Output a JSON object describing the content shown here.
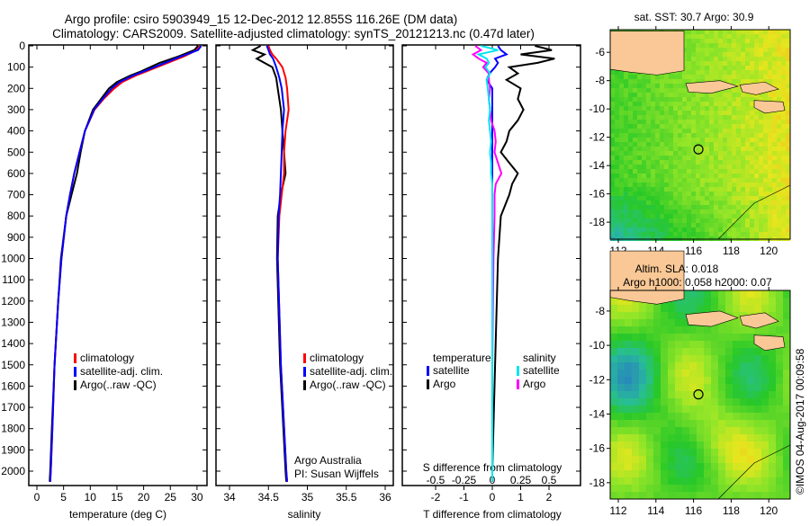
{
  "title": {
    "line1": "Argo profile: csiro 5903949_15 12-Dec-2012 12.855S 116.26E (DM data)",
    "line2": "Climatology: CARS2009. Satellite-adjusted climatology: synTS_20121213.nc (0.47d later)"
  },
  "copyright": "©IMOS 04-Aug-2017 00:09:58",
  "colors": {
    "climatology": "#ff0000",
    "satellite": "#0000ff",
    "argo": "#000000",
    "sal_satellite": "#00e5ee",
    "sal_argo": "#ff00ff"
  },
  "chart_data": [
    {
      "type": "line",
      "name": "temperature",
      "xlabel": "temperature (deg C)",
      "ylabel": "depth",
      "xlim": [
        -1,
        31.5
      ],
      "ylim": [
        2070,
        0
      ],
      "xticks": [
        "0",
        "5",
        "10",
        "15",
        "20",
        "25",
        "30"
      ],
      "yticks": [
        "0",
        "100",
        "200",
        "300",
        "400",
        "500",
        "600",
        "700",
        "800",
        "900",
        "1000",
        "1100",
        "1200",
        "1300",
        "1400",
        "1500",
        "1600",
        "1700",
        "1800",
        "1900",
        "2000"
      ],
      "legend": [
        "climatology",
        "satellite-adj. clim.",
        "Argo(..raw -QC)"
      ],
      "depth": [
        0,
        20,
        50,
        80,
        120,
        140,
        170,
        200,
        250,
        300,
        400,
        500,
        600,
        700,
        800,
        1000,
        1200,
        1500,
        1800,
        2000,
        2050
      ],
      "series": [
        {
          "name": "climatology",
          "values": [
            30.5,
            30,
            27.5,
            24.5,
            20.5,
            18.5,
            16,
            14.5,
            12.5,
            10.8,
            9,
            8,
            7,
            6.2,
            5.5,
            4.6,
            4,
            3.3,
            2.9,
            2.6,
            2.5
          ]
        },
        {
          "name": "satellite-adj. clim.",
          "values": [
            30.8,
            30.2,
            27,
            24,
            20,
            18,
            15.5,
            14,
            12.3,
            10.7,
            9,
            8,
            7,
            6.2,
            5.5,
            4.6,
            4,
            3.3,
            2.9,
            2.6,
            2.5
          ]
        },
        {
          "name": "Argo",
          "values": [
            30.2,
            29.5,
            26.5,
            23,
            19.5,
            17.5,
            15,
            13.5,
            12,
            10.5,
            9,
            8.2,
            7.5,
            6.5,
            5.5,
            4.5,
            4,
            3.3,
            2.8,
            2.5,
            2.4
          ]
        }
      ]
    },
    {
      "type": "line",
      "name": "salinity",
      "xlabel": "salinity",
      "xlim": [
        33.82,
        36.1
      ],
      "ylim": [
        2070,
        0
      ],
      "xticks": [
        "34",
        "34.5",
        "35",
        "35.5",
        "36"
      ],
      "legend": [
        "climatology",
        "satellite-adj. clim.",
        "Argo(..raw -QC)"
      ],
      "annotation": [
        "Argo Australia",
        "PI: Susan Wijffels"
      ],
      "depth": [
        0,
        20,
        40,
        60,
        100,
        150,
        200,
        300,
        400,
        500,
        600,
        700,
        800,
        1000,
        1500,
        2000,
        2050
      ],
      "series": [
        {
          "name": "climatology",
          "values": [
            34.5,
            34.52,
            34.55,
            34.6,
            34.68,
            34.72,
            34.74,
            34.76,
            34.72,
            34.7,
            34.7,
            34.67,
            34.64,
            34.62,
            34.66,
            34.73,
            34.74
          ]
        },
        {
          "name": "satellite-adj. clim.",
          "values": [
            34.48,
            34.5,
            34.52,
            34.56,
            34.6,
            34.64,
            34.67,
            34.7,
            34.68,
            34.67,
            34.66,
            34.65,
            34.63,
            34.62,
            34.66,
            34.73,
            34.74
          ]
        },
        {
          "name": "Argo",
          "values": [
            34.4,
            34.3,
            34.45,
            34.35,
            34.55,
            34.6,
            34.62,
            34.66,
            34.68,
            34.7,
            34.72,
            34.66,
            34.62,
            34.61,
            34.65,
            34.72,
            34.73
          ]
        }
      ]
    },
    {
      "type": "line",
      "name": "difference",
      "xlabel": "T difference from climatology",
      "x2label": "S difference from climatology",
      "xlim": [
        -3,
        3
      ],
      "ylim": [
        2070,
        0
      ],
      "xticks": [
        "-2",
        "-1",
        "0",
        "1",
        "2"
      ],
      "x2ticks": [
        "-0.5",
        "-0.25",
        "0",
        "0.25",
        "0.5"
      ],
      "legend": {
        "temperature_header": "temperature",
        "salinity_header": "salinity",
        "t_sat": "satellite",
        "t_argo": "Argo",
        "s_sat": "satellite",
        "s_argo": "Argo"
      },
      "depth": [
        0,
        20,
        40,
        60,
        80,
        100,
        130,
        160,
        200,
        250,
        300,
        350,
        400,
        450,
        500,
        550,
        600,
        650,
        700,
        800,
        1000,
        1500,
        2000,
        2050
      ],
      "series": [
        {
          "name": "T satellite",
          "values": [
            0.2,
            0.3,
            0.5,
            0.1,
            0.2,
            0.1,
            -0.1,
            -0.2,
            0,
            0,
            0,
            0,
            0,
            0,
            0,
            0,
            0,
            0,
            0,
            0,
            0,
            0,
            0,
            0
          ]
        },
        {
          "name": "T Argo",
          "values": [
            1.5,
            2.1,
            1,
            2.2,
            1.6,
            0.6,
            0.9,
            0.5,
            1.0,
            0.9,
            1.1,
            0.9,
            0.6,
            0.5,
            0.3,
            0.6,
            0.9,
            0.7,
            0.6,
            0.3,
            0.2,
            0.1,
            0,
            0
          ]
        },
        {
          "name": "S satellite",
          "values": [
            -0.1,
            0.05,
            -0.12,
            -0.05,
            -0.03,
            -0.06,
            -0.02,
            -0.05,
            -0.04,
            -0.03,
            -0.02,
            -0.03,
            -0.02,
            -0.01,
            -0.02,
            -0.01,
            -0.01,
            0,
            0,
            0,
            0,
            0,
            0,
            0
          ]
        },
        {
          "name": "S Argo",
          "values": [
            -0.15,
            -0.1,
            -0.17,
            -0.12,
            -0.05,
            -0.08,
            -0.03,
            -0.03,
            -0.02,
            -0.03,
            -0.02,
            -0.01,
            0.02,
            0.03,
            0.02,
            0.05,
            0.08,
            0.03,
            0.02,
            0.02,
            0.01,
            0,
            0,
            0
          ]
        }
      ]
    }
  ],
  "maps": [
    {
      "title": "sat. SST: 30.7  Argo: 30.9",
      "lonticks": [
        "112",
        "114",
        "116",
        "118",
        "120"
      ],
      "latticks": [
        "-6",
        "-8",
        "-10",
        "-12",
        "-14",
        "-16",
        "-18"
      ],
      "lat_top": -4.4,
      "lat_bottom": -19.2
    },
    {
      "title1": "Altim. SLA: 0.018",
      "title2": "Argo h1000: 0.058 h2000: 0.07",
      "lonticks": [
        "112",
        "114",
        "116",
        "118",
        "120"
      ],
      "latticks": [
        "-8",
        "-10",
        "-12",
        "-14",
        "-16",
        "-18"
      ],
      "lat_top": -6.8,
      "lat_bottom": -18.95
    }
  ],
  "profile_location": {
    "lon": 116.26,
    "lat": -12.855
  }
}
